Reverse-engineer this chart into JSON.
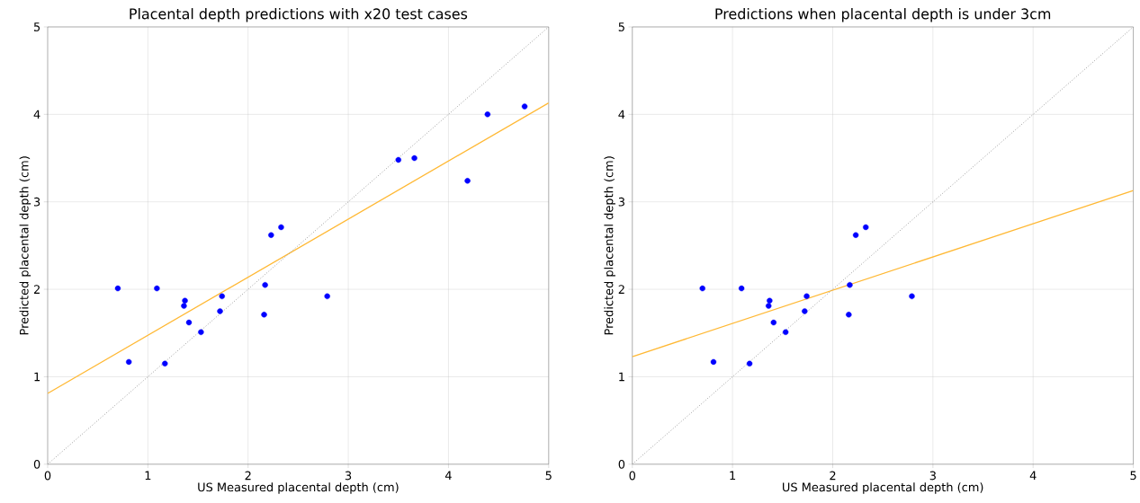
{
  "chart_data": [
    {
      "type": "scatter",
      "marker": "circle",
      "title": "Placental depth predictions with x20 test cases",
      "xlabel": "US Measured placental depth (cm)",
      "ylabel": "Predicted placental depth (cm)",
      "xlim": [
        0,
        5
      ],
      "ylim": [
        0,
        5
      ],
      "xticks": [
        0,
        1,
        2,
        3,
        4,
        5
      ],
      "yticks": [
        0,
        1,
        2,
        3,
        4,
        5
      ],
      "grid": true,
      "series": [
        {
          "color": "#0000ff",
          "x": [
            0.7,
            1.09,
            0.81,
            1.17,
            1.37,
            1.36,
            1.41,
            1.53,
            1.74,
            1.72,
            2.17,
            2.16,
            2.23,
            2.33,
            2.79,
            3.5,
            3.66,
            4.19,
            4.39,
            4.76
          ],
          "values": [
            2.01,
            2.01,
            1.17,
            1.15,
            1.87,
            1.81,
            1.62,
            1.51,
            1.92,
            1.75,
            2.05,
            1.71,
            2.62,
            2.71,
            1.92,
            3.48,
            3.5,
            3.24,
            4.0,
            4.09
          ]
        },
        {
          "type": "line",
          "marker": "none",
          "color": "#ffb833",
          "line_style": "solid",
          "x": [
            0,
            5
          ],
          "values": [
            0.81,
            4.13
          ]
        },
        {
          "type": "line",
          "marker": "none",
          "color": "#999999",
          "line_style": "dotted",
          "x": [
            0,
            5
          ],
          "values": [
            0,
            5
          ]
        }
      ]
    },
    {
      "type": "scatter",
      "marker": "circle",
      "title": "Predictions when placental depth is under 3cm",
      "xlabel": "US Measured placental depth (cm)",
      "ylabel": "Predicted placental depth (cm)",
      "xlim": [
        0,
        5
      ],
      "ylim": [
        0,
        5
      ],
      "xticks": [
        0,
        1,
        2,
        3,
        4,
        5
      ],
      "yticks": [
        0,
        1,
        2,
        3,
        4,
        5
      ],
      "grid": true,
      "series": [
        {
          "color": "#0000ff",
          "x": [
            0.7,
            1.09,
            0.81,
            1.17,
            1.37,
            1.36,
            1.41,
            1.53,
            1.74,
            1.72,
            2.17,
            2.16,
            2.23,
            2.33,
            2.79
          ],
          "values": [
            2.01,
            2.01,
            1.17,
            1.15,
            1.87,
            1.81,
            1.62,
            1.51,
            1.92,
            1.75,
            2.05,
            1.71,
            2.62,
            2.71,
            1.92
          ]
        },
        {
          "type": "line",
          "marker": "none",
          "color": "#ffb833",
          "line_style": "solid",
          "x": [
            0,
            5
          ],
          "values": [
            1.23,
            3.13
          ]
        },
        {
          "type": "line",
          "marker": "none",
          "color": "#999999",
          "line_style": "dotted",
          "x": [
            0,
            5
          ],
          "values": [
            0,
            5
          ]
        }
      ]
    }
  ]
}
